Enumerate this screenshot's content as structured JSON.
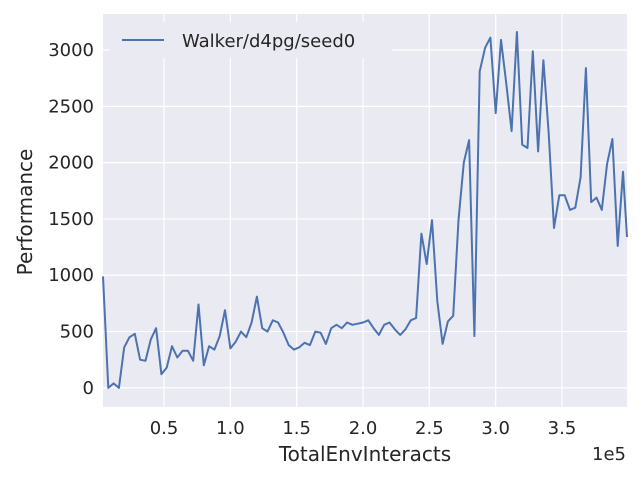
{
  "chart_data": {
    "type": "line",
    "xlabel": "TotalEnvInteracts",
    "ylabel": "Performance",
    "x_offset_label": "1e5",
    "xlim": [
      0.04,
      3.99
    ],
    "ylim": [
      -170,
      3320
    ],
    "x_ticks": [
      0.5,
      1.0,
      1.5,
      2.0,
      2.5,
      3.0,
      3.5
    ],
    "x_tick_labels": [
      "0.5",
      "1.0",
      "1.5",
      "2.0",
      "2.5",
      "3.0",
      "3.5"
    ],
    "y_ticks": [
      0,
      500,
      1000,
      1500,
      2000,
      2500,
      3000
    ],
    "y_tick_labels": [
      "0",
      "500",
      "1000",
      "1500",
      "2000",
      "2500",
      "3000"
    ],
    "grid": true,
    "legend_position": "top-left",
    "colors": {
      "background": "#eaeaf2",
      "grid": "#ffffff",
      "line": "#4c72b0"
    },
    "series": [
      {
        "name": "Walker/d4pg/seed0",
        "x": [
          0.04,
          0.08,
          0.12,
          0.16,
          0.2,
          0.24,
          0.28,
          0.32,
          0.36,
          0.4,
          0.44,
          0.48,
          0.52,
          0.56,
          0.6,
          0.64,
          0.68,
          0.72,
          0.76,
          0.8,
          0.84,
          0.88,
          0.92,
          0.96,
          1.0,
          1.04,
          1.08,
          1.12,
          1.16,
          1.2,
          1.24,
          1.28,
          1.32,
          1.36,
          1.4,
          1.44,
          1.48,
          1.52,
          1.56,
          1.6,
          1.64,
          1.68,
          1.72,
          1.76,
          1.8,
          1.84,
          1.88,
          1.92,
          1.96,
          2.0,
          2.04,
          2.08,
          2.12,
          2.16,
          2.2,
          2.24,
          2.28,
          2.32,
          2.36,
          2.4,
          2.44,
          2.48,
          2.52,
          2.56,
          2.6,
          2.64,
          2.68,
          2.72,
          2.76,
          2.8,
          2.84,
          2.88,
          2.92,
          2.96,
          3.0,
          3.04,
          3.08,
          3.12,
          3.16,
          3.2,
          3.24,
          3.28,
          3.32,
          3.36,
          3.4,
          3.44,
          3.48,
          3.52,
          3.56,
          3.6,
          3.64,
          3.68,
          3.72,
          3.76,
          3.8,
          3.84,
          3.88,
          3.92,
          3.96,
          3.99
        ],
        "y": [
          990,
          0,
          40,
          0,
          360,
          450,
          480,
          250,
          240,
          430,
          530,
          120,
          180,
          370,
          270,
          330,
          330,
          240,
          740,
          200,
          370,
          340,
          460,
          690,
          350,
          410,
          500,
          450,
          580,
          810,
          530,
          500,
          600,
          580,
          490,
          380,
          340,
          360,
          400,
          380,
          500,
          490,
          390,
          530,
          560,
          530,
          580,
          560,
          570,
          580,
          600,
          530,
          470,
          560,
          580,
          520,
          470,
          520,
          600,
          620,
          1370,
          1100,
          1490,
          770,
          390,
          590,
          640,
          1490,
          2000,
          2200,
          460,
          2810,
          3020,
          3110,
          2440,
          3090,
          2700,
          2280,
          3160,
          2160,
          2130,
          2990,
          2100,
          2910,
          2260,
          1420,
          1710,
          1710,
          1580,
          1600,
          1870,
          2840,
          1650,
          1690,
          1580,
          1990,
          2210,
          1260,
          1920,
          1340
        ]
      }
    ]
  }
}
